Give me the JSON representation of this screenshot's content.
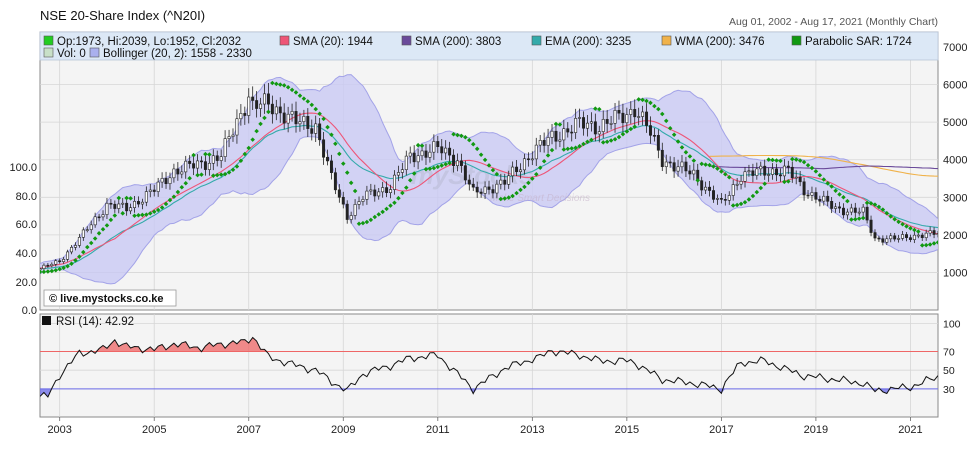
{
  "header": {
    "title": "NSE 20-Share Index (^N20I)",
    "period": "Aug 01, 2002 - Aug 17, 2021 (Monthly Chart)"
  },
  "legend": {
    "row1": [
      {
        "text": "Op:1973, Hi:2039, Lo:1952, Cl:2032",
        "color": "#22cc22"
      },
      {
        "text": "SMA (20): 1944",
        "color": "#ee5577"
      },
      {
        "text": "SMA (200): 3803",
        "color": "#6a4a9a"
      },
      {
        "text": "EMA (200): 3235",
        "color": "#33aaaa"
      },
      {
        "text": "WMA (200): 3476",
        "color": "#f0b24a"
      },
      {
        "text": "Parabolic SAR: 1724",
        "color": "#119911"
      }
    ],
    "row2": [
      {
        "text": "Vol: 0",
        "color": "#c8e0c8"
      },
      {
        "text": "Bollinger (20, 2): 1558 - 2330",
        "color": "#aab0ee"
      }
    ]
  },
  "watermark": {
    "site": "© live.mystocks.co.ke",
    "brand": "myStocks",
    "tagline": "Make Smart Decisions"
  },
  "rsi_label": "RSI (14): 42.92",
  "colors": {
    "panel_bg": "#f4f4f4",
    "legend_bg": "#dce8f6",
    "candle_up": "#ffffff",
    "candle_down": "#222222",
    "bollinger_fill": "#c9c9f4",
    "bollinger_edge": "#a3a3e8",
    "sma20": "#ee5577",
    "sma200": "#6a4a9a",
    "ema200": "#33aaaa",
    "wma200": "#f0b24a",
    "sar": "#119911",
    "rsi_line": "#111111",
    "rsi_over": "#ee6666",
    "rsi_under": "#6a6ae8"
  },
  "chart_data": [
    {
      "type": "candlestick",
      "title": "NSE 20-Share Index (^N20I)",
      "x_range": [
        "2002-08",
        "2021-08"
      ],
      "x_ticks": [
        "2003",
        "2005",
        "2007",
        "2009",
        "2011",
        "2013",
        "2015",
        "2017",
        "2019",
        "2021"
      ],
      "y_right_ticks": [
        "1000",
        "2000",
        "3000",
        "4000",
        "5000",
        "6000",
        "7000"
      ],
      "y_left_ticks": [
        "0.0",
        "20.0",
        "40.0",
        "60.0",
        "80.0",
        "100.0"
      ],
      "y_range": [
        0,
        7400
      ],
      "grid": true,
      "close_series": {
        "dates": [
          "2002-08",
          "2003-01",
          "2003-06",
          "2004-01",
          "2004-06",
          "2005-01",
          "2005-06",
          "2006-01",
          "2006-06",
          "2007-01",
          "2007-02",
          "2007-06",
          "2008-01",
          "2008-06",
          "2008-10",
          "2009-02",
          "2009-06",
          "2010-01",
          "2010-06",
          "2011-01",
          "2011-06",
          "2011-10",
          "2012-06",
          "2013-01",
          "2013-06",
          "2014-01",
          "2014-06",
          "2015-01",
          "2015-03",
          "2015-06",
          "2015-10",
          "2016-06",
          "2017-01",
          "2017-03",
          "2017-06",
          "2018-01",
          "2018-06",
          "2018-10",
          "2019-06",
          "2020-01",
          "2020-04",
          "2020-10",
          "2021-03",
          "2021-08"
        ],
        "values": [
          1100,
          1300,
          1900,
          2800,
          2700,
          3200,
          3700,
          3900,
          4100,
          5700,
          5400,
          5500,
          5000,
          4900,
          3500,
          2500,
          3000,
          3300,
          4100,
          4300,
          4000,
          3100,
          3400,
          4200,
          4600,
          4950,
          4900,
          5200,
          5400,
          4900,
          4000,
          3600,
          2800,
          3100,
          3600,
          3700,
          3700,
          3200,
          2700,
          2600,
          1900,
          1900,
          2000,
          2032
        ]
      },
      "indicators": {
        "sma20_last": 1944,
        "sma200_last": 3803,
        "ema200_last": 3235,
        "wma200_last": 3476,
        "parabolic_sar_last": 1724,
        "bollinger_last": [
          1558,
          2330
        ]
      }
    },
    {
      "type": "line",
      "title": "RSI (14): 42.92",
      "y_ticks": [
        "100",
        "70",
        "50",
        "30"
      ],
      "reference_lines": [
        70,
        30
      ],
      "y_range": [
        0,
        110
      ],
      "rsi_series": {
        "dates": [
          "2002-08",
          "2002-10",
          "2003-01",
          "2003-06",
          "2003-12",
          "2004-03",
          "2004-06",
          "2005-01",
          "2005-06",
          "2006-01",
          "2006-06",
          "2006-12",
          "2007-02",
          "2007-06",
          "2008-01",
          "2008-06",
          "2008-10",
          "2009-02",
          "2009-06",
          "2010-01",
          "2010-06",
          "2011-01",
          "2011-10",
          "2012-06",
          "2013-01",
          "2013-03",
          "2013-06",
          "2014-01",
          "2014-06",
          "2015-01",
          "2015-03",
          "2015-10",
          "2016-06",
          "2017-01",
          "2017-03",
          "2017-06",
          "2017-12",
          "2018-06",
          "2018-10",
          "2019-06",
          "2020-01",
          "2020-04",
          "2021-01",
          "2021-08"
        ],
        "values": [
          22,
          22,
          45,
          68,
          72,
          82,
          75,
          72,
          78,
          74,
          78,
          80,
          86,
          64,
          55,
          50,
          38,
          28,
          46,
          55,
          63,
          66,
          30,
          52,
          62,
          64,
          71,
          66,
          60,
          60,
          58,
          40,
          36,
          30,
          42,
          58,
          60,
          50,
          44,
          40,
          36,
          28,
          32,
          43
        ]
      }
    }
  ]
}
